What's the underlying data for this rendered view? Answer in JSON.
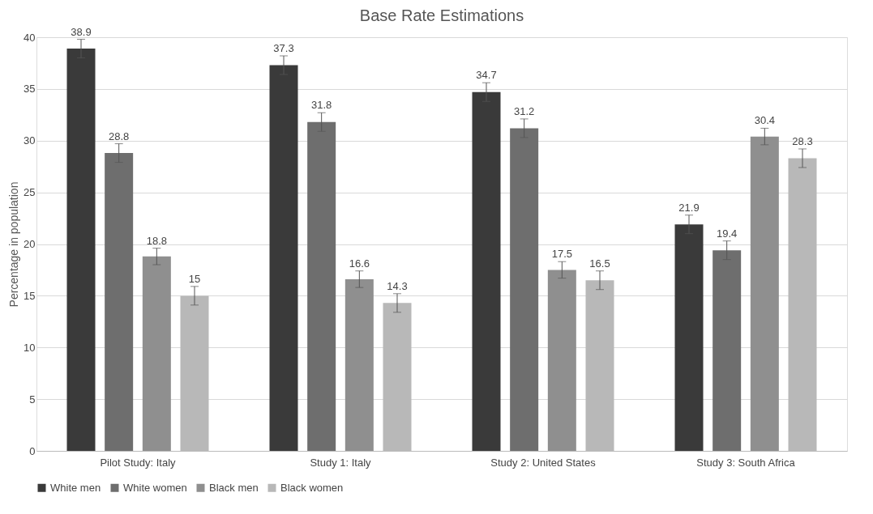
{
  "chart_data": {
    "type": "bar",
    "title": "Base Rate Estimations",
    "ylabel": "Percentage in population",
    "categories": [
      "Pilot Study: Italy",
      "Study 1: Italy",
      "Study 2: United States",
      "Study 3: South Africa"
    ],
    "series": [
      {
        "name": "White men",
        "color": "#3a3a3a",
        "values": [
          38.9,
          37.3,
          34.7,
          21.9
        ],
        "errors": [
          0.9,
          0.9,
          0.9,
          0.9
        ]
      },
      {
        "name": "White women",
        "color": "#6e6e6e",
        "values": [
          28.8,
          31.8,
          31.2,
          19.4
        ],
        "errors": [
          0.9,
          0.9,
          0.9,
          0.9
        ]
      },
      {
        "name": "Black men",
        "color": "#8f8f8f",
        "values": [
          18.8,
          16.6,
          17.5,
          30.4
        ],
        "errors": [
          0.8,
          0.8,
          0.8,
          0.8
        ]
      },
      {
        "name": "Black women",
        "color": "#b8b8b8",
        "values": [
          15,
          14.3,
          16.5,
          28.3
        ],
        "errors": [
          0.9,
          0.9,
          0.9,
          0.9
        ]
      }
    ],
    "ylim": [
      0,
      40
    ],
    "yticks": [
      0,
      5,
      10,
      15,
      20,
      25,
      30,
      35,
      40
    ],
    "grid": "y",
    "legend": "bottom",
    "data_labels": true
  }
}
